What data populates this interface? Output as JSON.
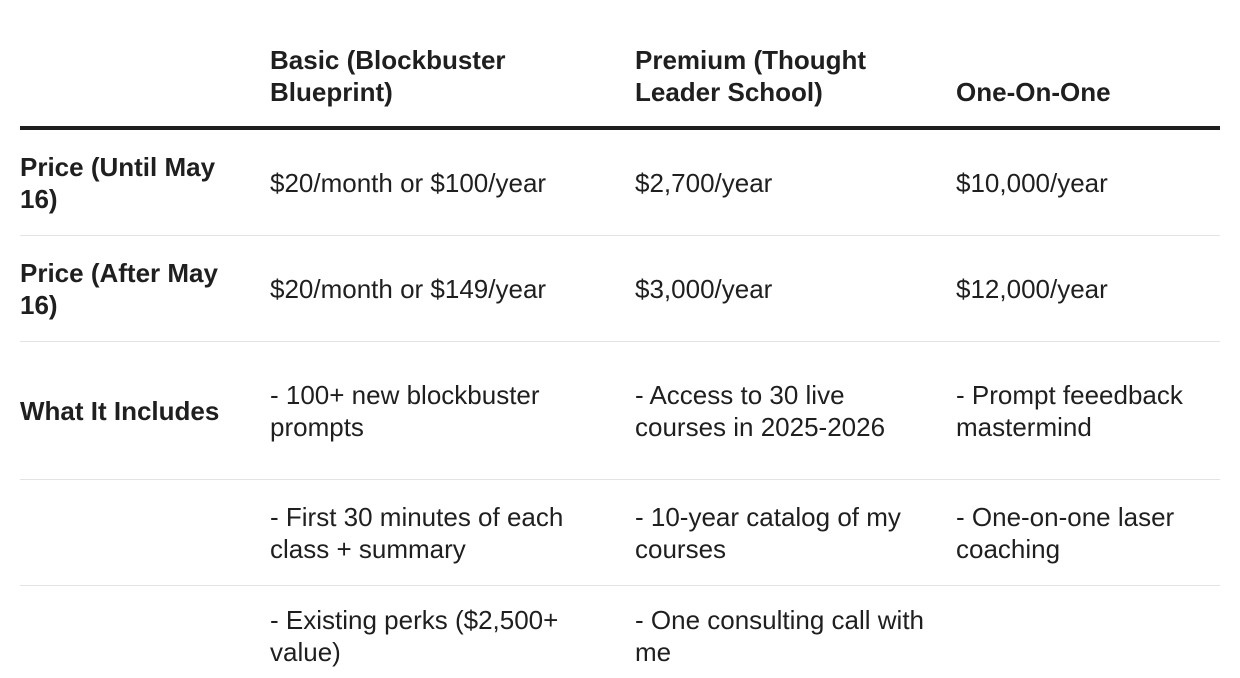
{
  "columns": [
    "",
    "Basic (Blockbuster Blueprint)",
    "Premium (Thought Leader School)",
    "One-On-One"
  ],
  "rows": [
    {
      "label": "Price (Until May 16)",
      "basic": "$20/month or $100/year",
      "premium": "$2,700/year",
      "one_on_one": "$10,000/year"
    },
    {
      "label": "Price (After May 16)",
      "basic": "$20/month or $149/year",
      "premium": "$3,000/year",
      "one_on_one": "$12,000/year"
    },
    {
      "label": "What It Includes",
      "basic": "- 100+ new blockbuster prompts",
      "premium": "- Access to 30 live courses in 2025-2026",
      "one_on_one": "- Prompt feeedback mastermind"
    },
    {
      "label": "",
      "basic": "- First 30 minutes of each class + summary",
      "premium": "- 10-year catalog of my courses",
      "one_on_one": "- One-on-one laser coaching"
    },
    {
      "label": "",
      "basic": "- Existing perks ($2,500+ value)",
      "premium": "- One consulting call with me",
      "one_on_one": ""
    }
  ]
}
